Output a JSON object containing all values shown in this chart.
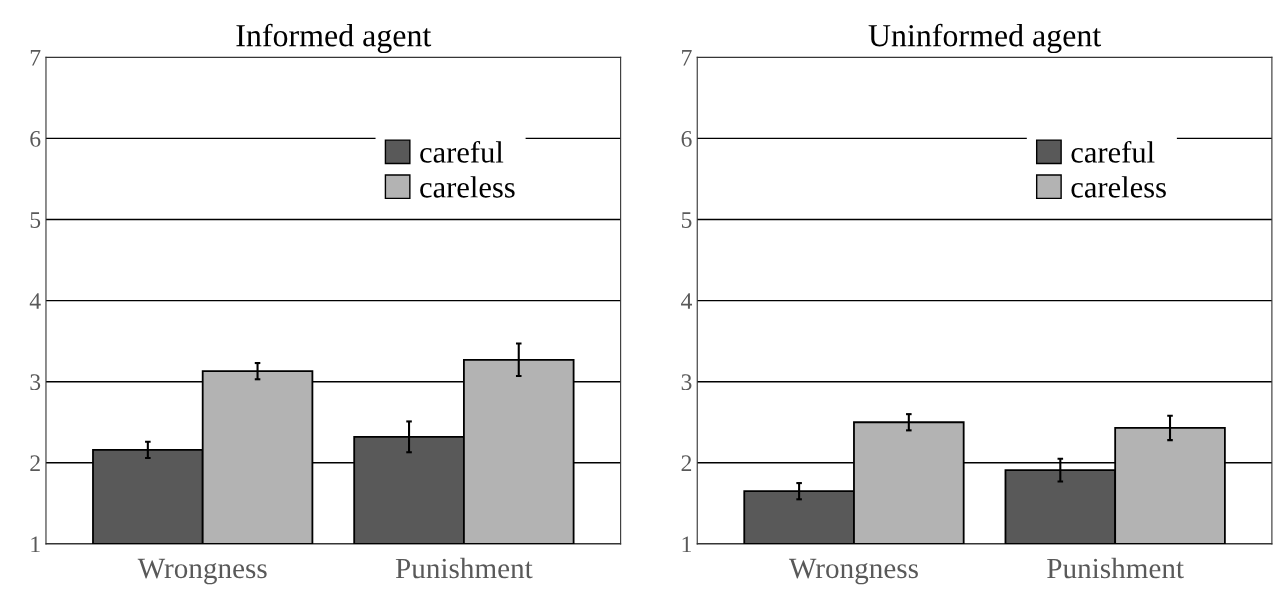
{
  "chart_data": [
    {
      "type": "bar",
      "title": "Informed agent",
      "categories": [
        "Wrongness",
        "Punishment"
      ],
      "series": [
        {
          "name": "careful",
          "color": "#595959",
          "values": [
            2.16,
            2.32
          ],
          "errors": [
            0.1,
            0.19
          ]
        },
        {
          "name": "careless",
          "color": "#b3b3b3",
          "values": [
            3.13,
            3.27
          ],
          "errors": [
            0.1,
            0.2
          ]
        }
      ],
      "ylim": [
        1,
        7
      ],
      "yticks": [
        1,
        2,
        3,
        4,
        5,
        6,
        7
      ],
      "grid": "y",
      "legend": "top right"
    },
    {
      "type": "bar",
      "title": "Uninformed agent",
      "categories": [
        "Wrongness",
        "Punishment"
      ],
      "series": [
        {
          "name": "careful",
          "color": "#595959",
          "values": [
            1.65,
            1.91
          ],
          "errors": [
            0.1,
            0.14
          ]
        },
        {
          "name": "careless",
          "color": "#b3b3b3",
          "values": [
            2.5,
            2.43
          ],
          "errors": [
            0.1,
            0.15
          ]
        }
      ],
      "ylim": [
        1,
        7
      ],
      "yticks": [
        1,
        2,
        3,
        4,
        5,
        6,
        7
      ],
      "grid": "y",
      "legend": "top right"
    }
  ]
}
